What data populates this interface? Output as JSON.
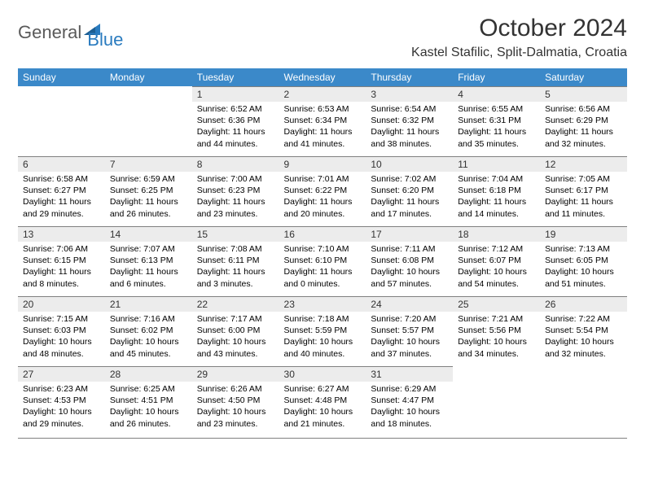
{
  "brand": {
    "part1": "General",
    "part2": "Blue"
  },
  "title": "October 2024",
  "location": "Kastel Stafilic, Split-Dalmatia, Croatia",
  "colors": {
    "header_bg": "#3b89c9",
    "header_text": "#ffffff",
    "daynum_bg": "#ececec",
    "rule": "#808080",
    "logo_gray": "#5a5a5a",
    "logo_blue": "#2a7bbf"
  },
  "fonts": {
    "title_size": 30,
    "location_size": 16,
    "weekday_size": 12,
    "daynum_size": 12,
    "body_size": 10.5
  },
  "weekdays": [
    "Sunday",
    "Monday",
    "Tuesday",
    "Wednesday",
    "Thursday",
    "Friday",
    "Saturday"
  ],
  "weeks": [
    [
      {
        "num": "",
        "sunrise": "",
        "sunset": "",
        "daylight": ""
      },
      {
        "num": "",
        "sunrise": "",
        "sunset": "",
        "daylight": ""
      },
      {
        "num": "1",
        "sunrise": "Sunrise: 6:52 AM",
        "sunset": "Sunset: 6:36 PM",
        "daylight": "Daylight: 11 hours and 44 minutes."
      },
      {
        "num": "2",
        "sunrise": "Sunrise: 6:53 AM",
        "sunset": "Sunset: 6:34 PM",
        "daylight": "Daylight: 11 hours and 41 minutes."
      },
      {
        "num": "3",
        "sunrise": "Sunrise: 6:54 AM",
        "sunset": "Sunset: 6:32 PM",
        "daylight": "Daylight: 11 hours and 38 minutes."
      },
      {
        "num": "4",
        "sunrise": "Sunrise: 6:55 AM",
        "sunset": "Sunset: 6:31 PM",
        "daylight": "Daylight: 11 hours and 35 minutes."
      },
      {
        "num": "5",
        "sunrise": "Sunrise: 6:56 AM",
        "sunset": "Sunset: 6:29 PM",
        "daylight": "Daylight: 11 hours and 32 minutes."
      }
    ],
    [
      {
        "num": "6",
        "sunrise": "Sunrise: 6:58 AM",
        "sunset": "Sunset: 6:27 PM",
        "daylight": "Daylight: 11 hours and 29 minutes."
      },
      {
        "num": "7",
        "sunrise": "Sunrise: 6:59 AM",
        "sunset": "Sunset: 6:25 PM",
        "daylight": "Daylight: 11 hours and 26 minutes."
      },
      {
        "num": "8",
        "sunrise": "Sunrise: 7:00 AM",
        "sunset": "Sunset: 6:23 PM",
        "daylight": "Daylight: 11 hours and 23 minutes."
      },
      {
        "num": "9",
        "sunrise": "Sunrise: 7:01 AM",
        "sunset": "Sunset: 6:22 PM",
        "daylight": "Daylight: 11 hours and 20 minutes."
      },
      {
        "num": "10",
        "sunrise": "Sunrise: 7:02 AM",
        "sunset": "Sunset: 6:20 PM",
        "daylight": "Daylight: 11 hours and 17 minutes."
      },
      {
        "num": "11",
        "sunrise": "Sunrise: 7:04 AM",
        "sunset": "Sunset: 6:18 PM",
        "daylight": "Daylight: 11 hours and 14 minutes."
      },
      {
        "num": "12",
        "sunrise": "Sunrise: 7:05 AM",
        "sunset": "Sunset: 6:17 PM",
        "daylight": "Daylight: 11 hours and 11 minutes."
      }
    ],
    [
      {
        "num": "13",
        "sunrise": "Sunrise: 7:06 AM",
        "sunset": "Sunset: 6:15 PM",
        "daylight": "Daylight: 11 hours and 8 minutes."
      },
      {
        "num": "14",
        "sunrise": "Sunrise: 7:07 AM",
        "sunset": "Sunset: 6:13 PM",
        "daylight": "Daylight: 11 hours and 6 minutes."
      },
      {
        "num": "15",
        "sunrise": "Sunrise: 7:08 AM",
        "sunset": "Sunset: 6:11 PM",
        "daylight": "Daylight: 11 hours and 3 minutes."
      },
      {
        "num": "16",
        "sunrise": "Sunrise: 7:10 AM",
        "sunset": "Sunset: 6:10 PM",
        "daylight": "Daylight: 11 hours and 0 minutes."
      },
      {
        "num": "17",
        "sunrise": "Sunrise: 7:11 AM",
        "sunset": "Sunset: 6:08 PM",
        "daylight": "Daylight: 10 hours and 57 minutes."
      },
      {
        "num": "18",
        "sunrise": "Sunrise: 7:12 AM",
        "sunset": "Sunset: 6:07 PM",
        "daylight": "Daylight: 10 hours and 54 minutes."
      },
      {
        "num": "19",
        "sunrise": "Sunrise: 7:13 AM",
        "sunset": "Sunset: 6:05 PM",
        "daylight": "Daylight: 10 hours and 51 minutes."
      }
    ],
    [
      {
        "num": "20",
        "sunrise": "Sunrise: 7:15 AM",
        "sunset": "Sunset: 6:03 PM",
        "daylight": "Daylight: 10 hours and 48 minutes."
      },
      {
        "num": "21",
        "sunrise": "Sunrise: 7:16 AM",
        "sunset": "Sunset: 6:02 PM",
        "daylight": "Daylight: 10 hours and 45 minutes."
      },
      {
        "num": "22",
        "sunrise": "Sunrise: 7:17 AM",
        "sunset": "Sunset: 6:00 PM",
        "daylight": "Daylight: 10 hours and 43 minutes."
      },
      {
        "num": "23",
        "sunrise": "Sunrise: 7:18 AM",
        "sunset": "Sunset: 5:59 PM",
        "daylight": "Daylight: 10 hours and 40 minutes."
      },
      {
        "num": "24",
        "sunrise": "Sunrise: 7:20 AM",
        "sunset": "Sunset: 5:57 PM",
        "daylight": "Daylight: 10 hours and 37 minutes."
      },
      {
        "num": "25",
        "sunrise": "Sunrise: 7:21 AM",
        "sunset": "Sunset: 5:56 PM",
        "daylight": "Daylight: 10 hours and 34 minutes."
      },
      {
        "num": "26",
        "sunrise": "Sunrise: 7:22 AM",
        "sunset": "Sunset: 5:54 PM",
        "daylight": "Daylight: 10 hours and 32 minutes."
      }
    ],
    [
      {
        "num": "27",
        "sunrise": "Sunrise: 6:23 AM",
        "sunset": "Sunset: 4:53 PM",
        "daylight": "Daylight: 10 hours and 29 minutes."
      },
      {
        "num": "28",
        "sunrise": "Sunrise: 6:25 AM",
        "sunset": "Sunset: 4:51 PM",
        "daylight": "Daylight: 10 hours and 26 minutes."
      },
      {
        "num": "29",
        "sunrise": "Sunrise: 6:26 AM",
        "sunset": "Sunset: 4:50 PM",
        "daylight": "Daylight: 10 hours and 23 minutes."
      },
      {
        "num": "30",
        "sunrise": "Sunrise: 6:27 AM",
        "sunset": "Sunset: 4:48 PM",
        "daylight": "Daylight: 10 hours and 21 minutes."
      },
      {
        "num": "31",
        "sunrise": "Sunrise: 6:29 AM",
        "sunset": "Sunset: 4:47 PM",
        "daylight": "Daylight: 10 hours and 18 minutes."
      },
      {
        "num": "",
        "sunrise": "",
        "sunset": "",
        "daylight": ""
      },
      {
        "num": "",
        "sunrise": "",
        "sunset": "",
        "daylight": ""
      }
    ]
  ]
}
